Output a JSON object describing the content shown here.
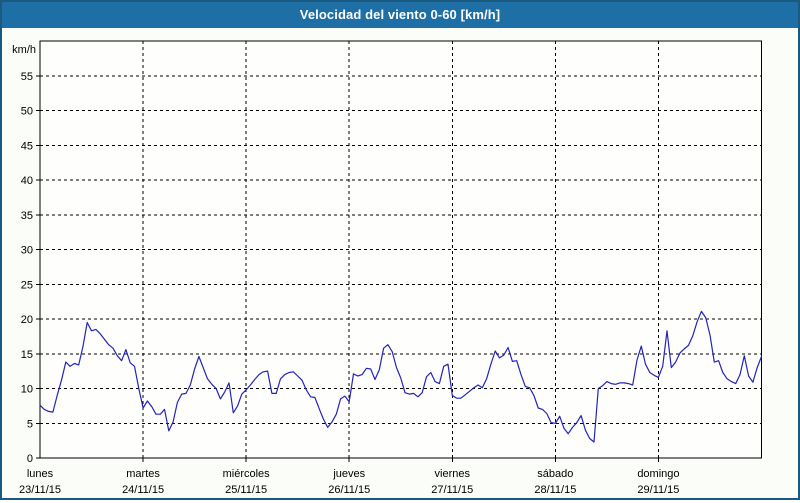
{
  "chart_data": {
    "type": "line",
    "title": "Velocidad del viento 0-60 [km/h]",
    "ylabel": "km/h",
    "xlabel": "",
    "ylim": [
      0,
      60
    ],
    "ytick_step": 5,
    "yticks": [
      0,
      5,
      10,
      15,
      20,
      25,
      30,
      35,
      40,
      45,
      50,
      55
    ],
    "grid": "dashed-both-axes",
    "legend": "none",
    "x_unit": "hours",
    "x_range": [
      0,
      168
    ],
    "days": [
      {
        "name": "lunes",
        "date": "23/11/15"
      },
      {
        "name": "martes",
        "date": "24/11/15"
      },
      {
        "name": "miércoles",
        "date": "25/11/15"
      },
      {
        "name": "jueves",
        "date": "26/11/15"
      },
      {
        "name": "viernes",
        "date": "27/11/15"
      },
      {
        "name": "sábado",
        "date": "28/11/15"
      },
      {
        "name": "domingo",
        "date": "29/11/15"
      }
    ],
    "series": [
      {
        "name": "velocidad-del-viento",
        "color": "#2424bb",
        "values": [
          7.6,
          7.0,
          6.7,
          6.6,
          9.0,
          11.2,
          13.8,
          13.2,
          13.6,
          13.4,
          16.0,
          19.5,
          18.3,
          18.5,
          17.9,
          17.1,
          16.3,
          15.8,
          14.7,
          14.0,
          15.6,
          13.7,
          13.2,
          10.0,
          7.2,
          8.2,
          7.4,
          6.3,
          6.3,
          7.0,
          3.9,
          5.2,
          8.0,
          9.2,
          9.3,
          10.5,
          12.8,
          14.6,
          13.0,
          11.4,
          10.6,
          10.0,
          8.5,
          9.5,
          10.8,
          6.5,
          7.5,
          9.2,
          9.8,
          10.5,
          11.3,
          12.0,
          12.4,
          12.5,
          9.3,
          9.3,
          11.4,
          12.0,
          12.3,
          12.4,
          11.8,
          11.2,
          9.8,
          8.8,
          8.7,
          7.1,
          5.6,
          4.4,
          5.2,
          6.3,
          8.5,
          8.9,
          8.1,
          12.1,
          11.8,
          12.0,
          12.9,
          12.8,
          11.3,
          12.7,
          15.8,
          16.3,
          15.3,
          13.0,
          11.5,
          9.4,
          9.2,
          9.3,
          8.8,
          9.4,
          11.7,
          12.3,
          11.0,
          10.7,
          13.2,
          13.5,
          9.0,
          8.6,
          8.6,
          9.1,
          9.6,
          10.1,
          10.5,
          10.1,
          11.4,
          13.5,
          15.4,
          14.4,
          14.8,
          15.9,
          13.9,
          14.0,
          12.0,
          10.3,
          10.1,
          9.0,
          7.2,
          7.0,
          6.4,
          5.1,
          5.0,
          6.0,
          4.3,
          3.5,
          4.4,
          5.1,
          6.1,
          4.0,
          2.8,
          2.3,
          10.0,
          10.4,
          11.0,
          10.7,
          10.6,
          10.8,
          10.8,
          10.7,
          10.5,
          14.1,
          16.1,
          13.5,
          12.3,
          11.9,
          11.6,
          13.2,
          18.3,
          13.0,
          13.8,
          15.1,
          15.7,
          16.2,
          17.6,
          19.6,
          21.1,
          20.2,
          17.7,
          13.8,
          14.0,
          12.3,
          11.4,
          11.0,
          10.7,
          12.0,
          14.7,
          11.8,
          10.9,
          13.0,
          14.6
        ]
      }
    ]
  },
  "colors": {
    "titlebar_bg": "#1d6fa5",
    "window_border": "#1b5a80",
    "page_bg": "#fbfdf9",
    "plot_bg": "#fefefc",
    "grid": "#000000",
    "axis": "#000000",
    "text": "#000000",
    "title_text": "#ffffff",
    "series_line": "#2424bb"
  }
}
